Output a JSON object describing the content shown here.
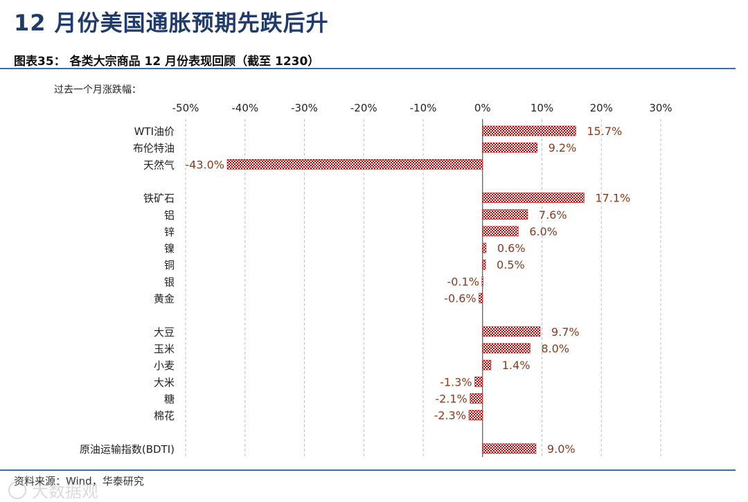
{
  "page_title": "12 月份美国通胀预期先跌后升",
  "chart_title": "图表35：  各类大宗商品 12 月份表现回顾（截至 1230）",
  "source": "资料来源：Wind，华泰研究",
  "watermark": "大数据观",
  "colors": {
    "title": "#1f3a6b",
    "rule": "#3a6ea5",
    "bar": "#c00000",
    "label": "#8b3a1a",
    "grid": "#bfbfbf"
  },
  "chart_data": {
    "type": "bar",
    "orientation": "horizontal",
    "ylabel": "过去一个月涨跌幅：",
    "xlim": [
      -50,
      30
    ],
    "xticks": [
      -50,
      -40,
      -30,
      -20,
      -10,
      0,
      10,
      20,
      30
    ],
    "xtick_labels": [
      "-50%",
      "-40%",
      "-30%",
      "-20%",
      "-10%",
      "0%",
      "10%",
      "20%",
      "30%"
    ],
    "grid": "vertical dashed",
    "groups": [
      {
        "items": [
          {
            "category": "WTI油价",
            "value": 15.7,
            "label": "15.7%"
          },
          {
            "category": "布伦特油",
            "value": 9.2,
            "label": "9.2%"
          },
          {
            "category": "天然气",
            "value": -43.0,
            "label": "-43.0%"
          }
        ]
      },
      {
        "items": [
          {
            "category": "铁矿石",
            "value": 17.1,
            "label": "17.1%"
          },
          {
            "category": "铝",
            "value": 7.6,
            "label": "7.6%"
          },
          {
            "category": "锌",
            "value": 6.0,
            "label": "6.0%"
          },
          {
            "category": "镍",
            "value": 0.6,
            "label": "0.6%"
          },
          {
            "category": "铜",
            "value": 0.5,
            "label": "0.5%"
          },
          {
            "category": "银",
            "value": -0.1,
            "label": "-0.1%"
          },
          {
            "category": "黄金",
            "value": -0.6,
            "label": "-0.6%"
          }
        ]
      },
      {
        "items": [
          {
            "category": "大豆",
            "value": 9.7,
            "label": "9.7%"
          },
          {
            "category": "玉米",
            "value": 8.0,
            "label": "8.0%"
          },
          {
            "category": "小麦",
            "value": 1.4,
            "label": "1.4%"
          },
          {
            "category": "大米",
            "value": -1.3,
            "label": "-1.3%"
          },
          {
            "category": "糖",
            "value": -2.1,
            "label": "-2.1%"
          },
          {
            "category": "棉花",
            "value": -2.3,
            "label": "-2.3%"
          }
        ]
      },
      {
        "items": [
          {
            "category": "原油运输指数(BDTI)",
            "value": 9.0,
            "label": "9.0%"
          }
        ]
      }
    ]
  }
}
